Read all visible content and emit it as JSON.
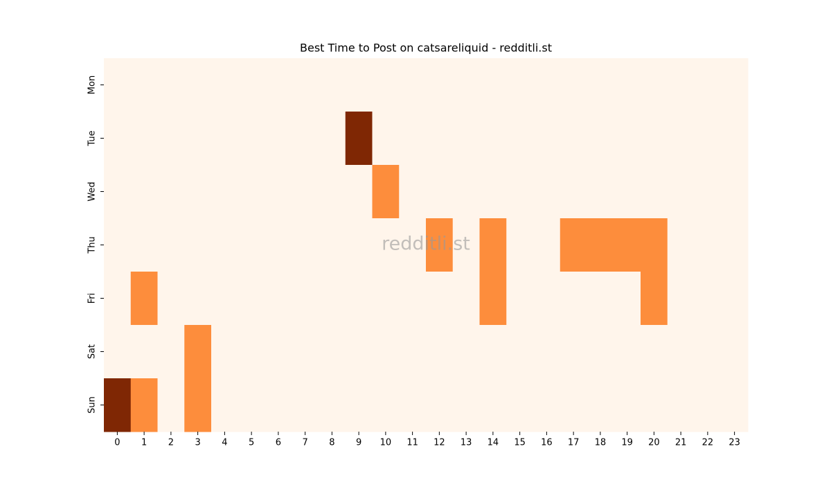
{
  "chart_data": {
    "type": "heatmap",
    "title": "Best Time to Post on catsareliquid - redditli.st",
    "watermark": "redditli.st",
    "x": [
      0,
      1,
      2,
      3,
      4,
      5,
      6,
      7,
      8,
      9,
      10,
      11,
      12,
      13,
      14,
      15,
      16,
      17,
      18,
      19,
      20,
      21,
      22,
      23
    ],
    "y": [
      "Mon",
      "Tue",
      "Wed",
      "Thu",
      "Fri",
      "Sat",
      "Sun"
    ],
    "values": [
      [
        0,
        0,
        0,
        0,
        0,
        0,
        0,
        0,
        0,
        0,
        0,
        0,
        0,
        0,
        0,
        0,
        0,
        0,
        0,
        0,
        0,
        0,
        0,
        0
      ],
      [
        0,
        0,
        0,
        0,
        0,
        0,
        0,
        0,
        0,
        2,
        0,
        0,
        0,
        0,
        0,
        0,
        0,
        0,
        0,
        0,
        0,
        0,
        0,
        0
      ],
      [
        0,
        0,
        0,
        0,
        0,
        0,
        0,
        0,
        0,
        0,
        1,
        0,
        0,
        0,
        0,
        0,
        0,
        0,
        0,
        0,
        0,
        0,
        0,
        0
      ],
      [
        0,
        0,
        0,
        0,
        0,
        0,
        0,
        0,
        0,
        0,
        0,
        0,
        1,
        0,
        1,
        0,
        0,
        1,
        1,
        1,
        1,
        0,
        0,
        0
      ],
      [
        0,
        1,
        0,
        0,
        0,
        0,
        0,
        0,
        0,
        0,
        0,
        0,
        0,
        0,
        1,
        0,
        0,
        0,
        0,
        0,
        1,
        0,
        0,
        0
      ],
      [
        0,
        0,
        0,
        1,
        0,
        0,
        0,
        0,
        0,
        0,
        0,
        0,
        0,
        0,
        0,
        0,
        0,
        0,
        0,
        0,
        0,
        0,
        0,
        0
      ],
      [
        2,
        1,
        0,
        1,
        0,
        0,
        0,
        0,
        0,
        0,
        0,
        0,
        0,
        0,
        0,
        0,
        0,
        0,
        0,
        0,
        0,
        0,
        0,
        0
      ]
    ],
    "colormap": [
      "#fff5eb",
      "#fd8d3c",
      "#7f2704"
    ]
  }
}
